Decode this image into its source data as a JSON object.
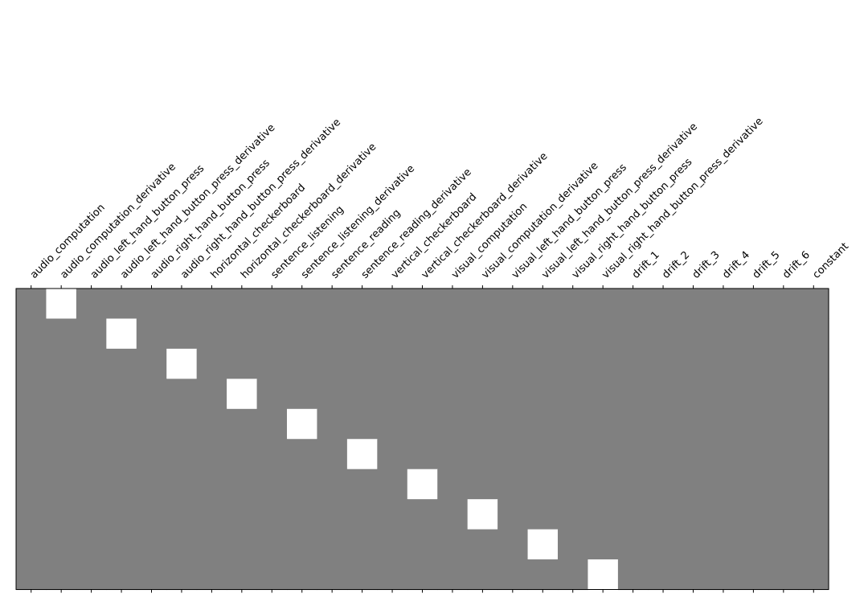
{
  "chart_data": {
    "type": "heatmap",
    "title": "",
    "xlabel": "",
    "ylabel": "",
    "columns": [
      "audio_computation",
      "audio_computation_derivative",
      "audio_left_hand_button_press",
      "audio_left_hand_button_press_derivative",
      "audio_right_hand_button_press",
      "audio_right_hand_button_press_derivative",
      "horizontal_checkerboard",
      "horizontal_checkerboard_derivative",
      "sentence_listening",
      "sentence_listening_derivative",
      "sentence_reading",
      "sentence_reading_derivative",
      "vertical_checkerboard",
      "vertical_checkerboard_derivative",
      "visual_computation",
      "visual_computation_derivative",
      "visual_left_hand_button_press",
      "visual_left_hand_button_press_derivative",
      "visual_right_hand_button_press",
      "visual_right_hand_button_press_derivative",
      "drift_1",
      "drift_2",
      "drift_3",
      "drift_4",
      "drift_5",
      "drift_6",
      "constant"
    ],
    "row_count": 10,
    "matrix": [
      [
        0,
        1,
        0,
        0,
        0,
        0,
        0,
        0,
        0,
        0,
        0,
        0,
        0,
        0,
        0,
        0,
        0,
        0,
        0,
        0,
        0,
        0,
        0,
        0,
        0,
        0,
        0
      ],
      [
        0,
        0,
        0,
        1,
        0,
        0,
        0,
        0,
        0,
        0,
        0,
        0,
        0,
        0,
        0,
        0,
        0,
        0,
        0,
        0,
        0,
        0,
        0,
        0,
        0,
        0,
        0
      ],
      [
        0,
        0,
        0,
        0,
        0,
        1,
        0,
        0,
        0,
        0,
        0,
        0,
        0,
        0,
        0,
        0,
        0,
        0,
        0,
        0,
        0,
        0,
        0,
        0,
        0,
        0,
        0
      ],
      [
        0,
        0,
        0,
        0,
        0,
        0,
        0,
        1,
        0,
        0,
        0,
        0,
        0,
        0,
        0,
        0,
        0,
        0,
        0,
        0,
        0,
        0,
        0,
        0,
        0,
        0,
        0
      ],
      [
        0,
        0,
        0,
        0,
        0,
        0,
        0,
        0,
        0,
        1,
        0,
        0,
        0,
        0,
        0,
        0,
        0,
        0,
        0,
        0,
        0,
        0,
        0,
        0,
        0,
        0,
        0
      ],
      [
        0,
        0,
        0,
        0,
        0,
        0,
        0,
        0,
        0,
        0,
        0,
        1,
        0,
        0,
        0,
        0,
        0,
        0,
        0,
        0,
        0,
        0,
        0,
        0,
        0,
        0,
        0
      ],
      [
        0,
        0,
        0,
        0,
        0,
        0,
        0,
        0,
        0,
        0,
        0,
        0,
        0,
        1,
        0,
        0,
        0,
        0,
        0,
        0,
        0,
        0,
        0,
        0,
        0,
        0,
        0
      ],
      [
        0,
        0,
        0,
        0,
        0,
        0,
        0,
        0,
        0,
        0,
        0,
        0,
        0,
        0,
        0,
        1,
        0,
        0,
        0,
        0,
        0,
        0,
        0,
        0,
        0,
        0,
        0
      ],
      [
        0,
        0,
        0,
        0,
        0,
        0,
        0,
        0,
        0,
        0,
        0,
        0,
        0,
        0,
        0,
        0,
        0,
        1,
        0,
        0,
        0,
        0,
        0,
        0,
        0,
        0,
        0
      ],
      [
        0,
        0,
        0,
        0,
        0,
        0,
        0,
        0,
        0,
        0,
        0,
        0,
        0,
        0,
        0,
        0,
        0,
        0,
        0,
        1,
        0,
        0,
        0,
        0,
        0,
        0,
        0
      ]
    ],
    "value_range": [
      -1,
      1
    ],
    "colormap": "gray",
    "colors": {
      "zero": "#808080",
      "one": "#ffffff",
      "axis": "#000000"
    },
    "grid": false,
    "legend": false
  }
}
